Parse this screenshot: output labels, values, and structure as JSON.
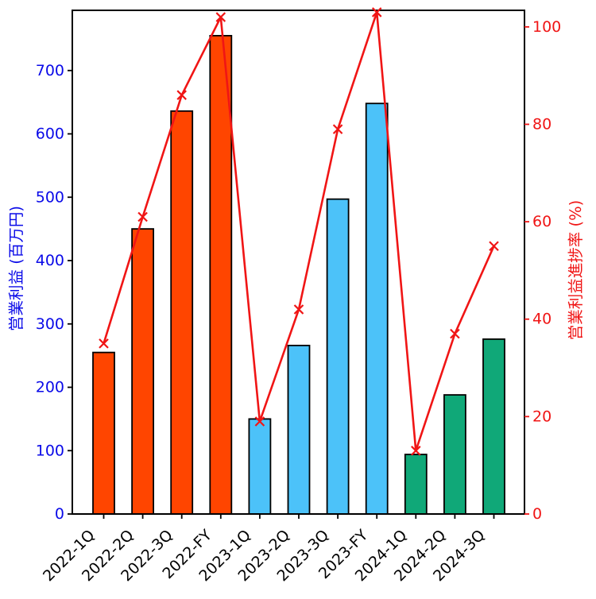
{
  "chart_data": {
    "type": "bar",
    "categories": [
      "2022-1Q",
      "2022-2Q",
      "2022-3Q",
      "2022-FY",
      "2023-1Q",
      "2023-2Q",
      "2023-3Q",
      "2023-FY",
      "2024-1Q",
      "2024-2Q",
      "2024-3Q"
    ],
    "series": [
      {
        "name": "営業利益",
        "type": "bar",
        "axis": "left",
        "values": [
          255,
          450,
          636,
          755,
          150,
          266,
          497,
          648,
          94,
          188,
          276
        ],
        "bar_colors": [
          "#ff4500",
          "#ff4500",
          "#ff4500",
          "#ff4500",
          "#4cc2f9",
          "#4cc2f9",
          "#4cc2f9",
          "#4cc2f9",
          "#10a878",
          "#10a878",
          "#10a878"
        ]
      },
      {
        "name": "営業利益進捗率",
        "type": "line",
        "axis": "right",
        "values": [
          35,
          61,
          86,
          102,
          19,
          42,
          79,
          103,
          13,
          37,
          55
        ],
        "color": "#f01515",
        "marker": "x"
      }
    ],
    "left_axis": {
      "label": "営業利益 (百万円)",
      "color": "#0a0ae8",
      "ticks": [
        0,
        100,
        200,
        300,
        400,
        500,
        600,
        700
      ],
      "range": [
        0,
        795
      ]
    },
    "right_axis": {
      "label": "営業利益進捗率 (%)",
      "color": "#f01515",
      "ticks": [
        0,
        20,
        40,
        60,
        80,
        100
      ],
      "range": [
        0,
        103.4
      ]
    },
    "x_axis": {
      "tick_label_color": "#000000",
      "rotation_deg": 45
    },
    "grid": false,
    "legend": null,
    "title": ""
  },
  "style": {
    "background": "#ffffff",
    "spine_color": "#000000",
    "tick_mark_color": "#000000",
    "bar_edge_color": "#000000",
    "group_colors": {
      "2022": "#ff4500",
      "2023": "#4cc2f9",
      "2024": "#10a878"
    }
  }
}
